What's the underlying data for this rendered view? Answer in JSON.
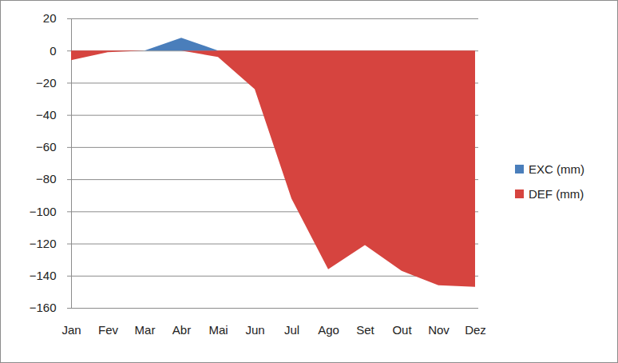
{
  "chart_data": {
    "type": "area",
    "categories": [
      "Jan",
      "Fev",
      "Mar",
      "Abr",
      "Mai",
      "Jun",
      "Jul",
      "Ago",
      "Set",
      "Out",
      "Nov",
      "Dez"
    ],
    "series": [
      {
        "name": "EXC (mm)",
        "color": "#4a7ebb",
        "values": [
          0,
          0,
          0,
          8,
          0,
          0,
          0,
          0,
          0,
          0,
          0,
          0
        ]
      },
      {
        "name": "DEF (mm)",
        "color": "#d6443f",
        "values": [
          -6,
          -1,
          0,
          0,
          -4,
          -24,
          -92,
          -136,
          -121,
          -137,
          -146,
          -147
        ]
      }
    ],
    "ylim": [
      -160,
      20
    ],
    "yticks": [
      -160,
      -140,
      -120,
      -100,
      -80,
      -60,
      -40,
      -20,
      0,
      20
    ],
    "grid": true,
    "legend": "right"
  }
}
